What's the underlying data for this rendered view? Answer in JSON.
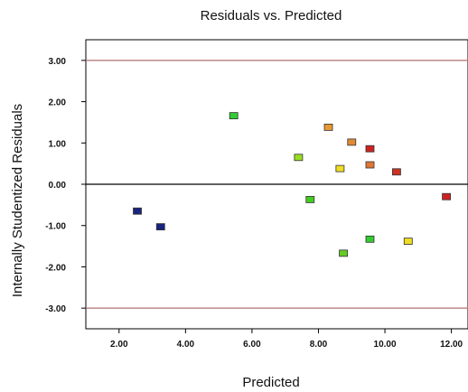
{
  "chart_data": {
    "type": "scatter",
    "title": "Residuals vs. Predicted",
    "xlabel": "Predicted",
    "ylabel": "Internally Studentized Residuals",
    "xlim": [
      1.0,
      12.5
    ],
    "ylim": [
      -3.5,
      3.5
    ],
    "x_ticks": [
      "2.00",
      "4.00",
      "6.00",
      "8.00",
      "10.00",
      "12.00"
    ],
    "y_ticks": [
      "3.00",
      "2.00",
      "1.00",
      "0.00",
      "-1.00",
      "-2.00",
      "-3.00"
    ],
    "reference_lines": [
      {
        "y": 3.0,
        "color": "#b07070"
      },
      {
        "y": 0.0,
        "color": "#000000"
      },
      {
        "y": -3.0,
        "color": "#b07070"
      }
    ],
    "grid": false,
    "points": [
      {
        "x": 2.55,
        "y": -0.65,
        "color": "#1a237e"
      },
      {
        "x": 3.25,
        "y": -1.03,
        "color": "#1a237e"
      },
      {
        "x": 5.45,
        "y": 1.66,
        "color": "#33cc33"
      },
      {
        "x": 7.4,
        "y": 0.65,
        "color": "#99dd22"
      },
      {
        "x": 7.75,
        "y": -0.37,
        "color": "#44cc22"
      },
      {
        "x": 8.3,
        "y": 1.38,
        "color": "#e69a33"
      },
      {
        "x": 8.65,
        "y": 0.38,
        "color": "#eedd22"
      },
      {
        "x": 8.75,
        "y": -1.67,
        "color": "#66cc22"
      },
      {
        "x": 9.0,
        "y": 1.02,
        "color": "#e08a33"
      },
      {
        "x": 9.55,
        "y": 0.86,
        "color": "#cc2222"
      },
      {
        "x": 9.55,
        "y": 0.47,
        "color": "#e07733"
      },
      {
        "x": 9.55,
        "y": -1.33,
        "color": "#33cc33"
      },
      {
        "x": 10.35,
        "y": 0.3,
        "color": "#cc3322"
      },
      {
        "x": 10.7,
        "y": -1.38,
        "color": "#eedd22"
      },
      {
        "x": 11.85,
        "y": -0.3,
        "color": "#cc2222"
      }
    ]
  }
}
